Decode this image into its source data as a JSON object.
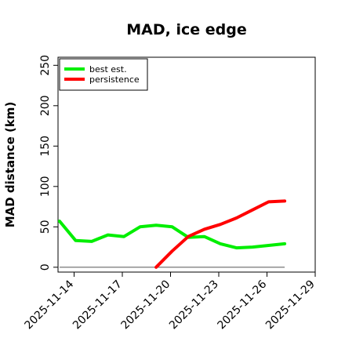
{
  "chart_data": {
    "type": "line",
    "title": "MAD, ice edge",
    "xlabel": "",
    "ylabel": "MAD distance (km)",
    "x_ticks": [
      "2025-11-14",
      "2025-11-17",
      "2025-11-20",
      "2025-11-23",
      "2025-11-26",
      "2025-11-29"
    ],
    "x_tick_positions": [
      14,
      17,
      20,
      23,
      26,
      29
    ],
    "y_ticks": [
      0,
      50,
      100,
      150,
      200,
      250
    ],
    "xlim": [
      13.0,
      29.0
    ],
    "ylim": [
      -6,
      260
    ],
    "legend_position": "top-left",
    "reference_line": {
      "y": 0,
      "x_start": 13.1,
      "x_end": 27.1,
      "color": "#666666"
    },
    "series": [
      {
        "name": "best est.",
        "color": "#00ee00",
        "x": [
          13.1,
          14.1,
          15.1,
          16.1,
          17.1,
          18.1,
          19.1,
          20.1,
          21.1,
          22.1,
          23.1,
          24.1,
          25.1,
          26.1,
          27.1
        ],
        "y": [
          57,
          33,
          32,
          40,
          38,
          50,
          52,
          50,
          37,
          38,
          29,
          24,
          25,
          27,
          29
        ]
      },
      {
        "name": "persistence",
        "color": "#ff0000",
        "x": [
          19.1,
          20.1,
          21.1,
          22.1,
          23.1,
          24.1,
          25.1,
          26.1,
          27.1
        ],
        "y": [
          0,
          20,
          38,
          47,
          53,
          61,
          71,
          81,
          82
        ]
      }
    ]
  }
}
